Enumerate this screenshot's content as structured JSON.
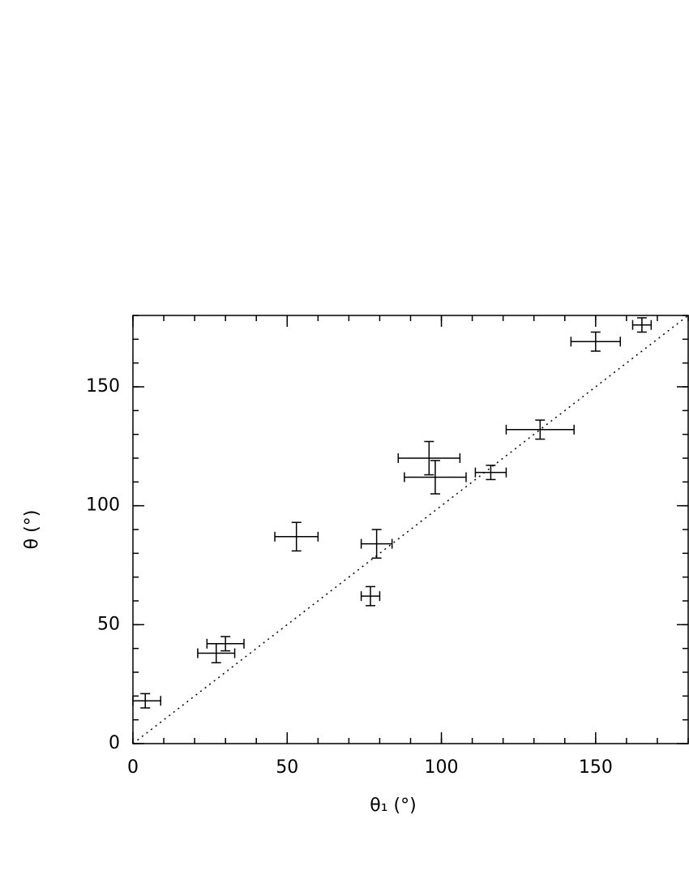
{
  "chart_data": {
    "type": "errorbar",
    "xlabel": "θ₁  (°)",
    "ylabel": "θ  (°)",
    "x": [
      4,
      27,
      30,
      53,
      77,
      79,
      96,
      98,
      116,
      132,
      150,
      165
    ],
    "xerr": [
      5,
      6,
      6,
      7,
      3,
      5,
      10,
      10,
      5,
      11,
      8,
      3
    ],
    "y": [
      18,
      38,
      42,
      87,
      62,
      84,
      120,
      112,
      114,
      132,
      169,
      176
    ],
    "yerr": [
      3,
      4,
      3,
      6,
      4,
      6,
      7,
      7,
      3,
      4,
      4,
      3
    ],
    "color": "#000000",
    "xlim": [
      0,
      180
    ],
    "ylim": [
      0,
      180
    ],
    "xticks": [
      0,
      50,
      100,
      150
    ],
    "yticks": [
      0,
      50,
      100,
      150
    ],
    "minor_tick_step": 10,
    "identity_line": true
  }
}
